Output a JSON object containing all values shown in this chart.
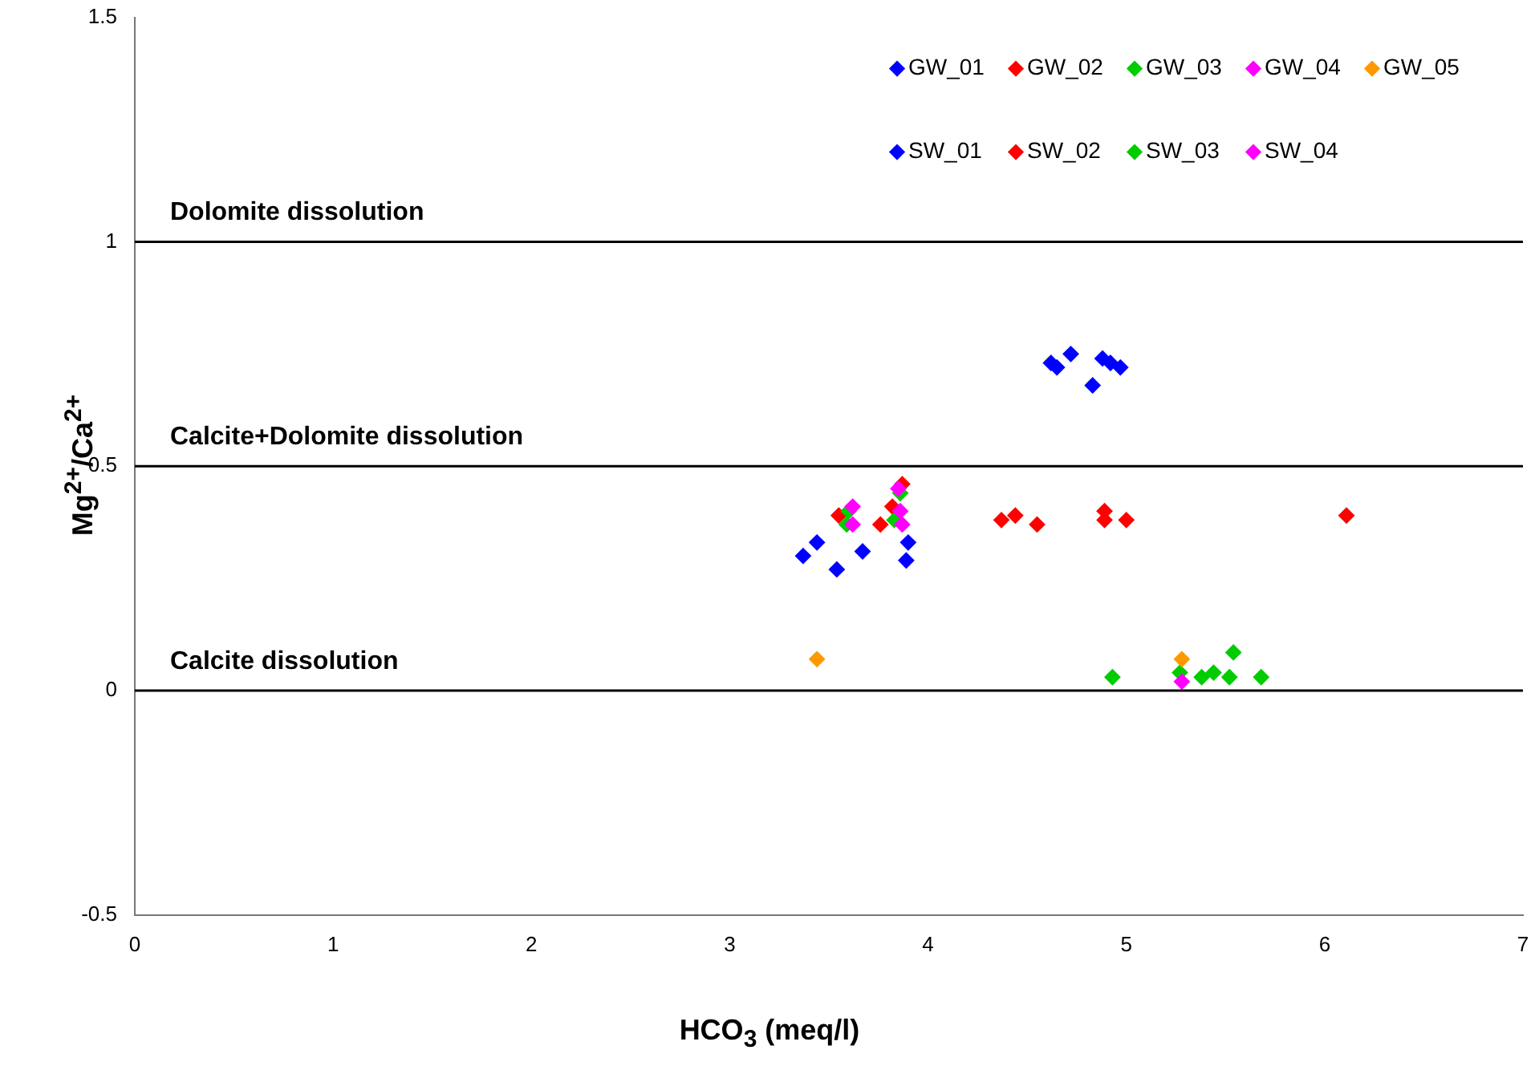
{
  "chart_data": {
    "type": "scatter",
    "xlabel": "HCO$_{3}$ (meq/l)",
    "ylabel": "Mg$^{2+}$/Ca$^{2+}$",
    "xlim": [
      0,
      7
    ],
    "xticks": [
      0,
      1,
      2,
      3,
      4,
      5,
      6,
      7
    ],
    "ylim": [
      -0.5,
      1.5
    ],
    "yticks": [
      -0.5,
      0,
      0.5,
      1,
      1.5
    ],
    "grid": false,
    "legend": "top right",
    "marker": "diamond",
    "ref_lines": [
      {
        "axis": "y",
        "value": 1,
        "label": "Dolomite dissolution",
        "color": "#000000"
      },
      {
        "axis": "y",
        "value": 0.5,
        "label": "Calcite+Dolomite dissolution",
        "color": "#000000"
      },
      {
        "axis": "y",
        "value": 0,
        "label": "Calcite dissolution",
        "color": "#000000"
      }
    ],
    "series": [
      {
        "name": "GW_01",
        "color": "#0000ff",
        "x": [
          3.37,
          3.44,
          3.54,
          3.67,
          3.9,
          3.89
        ],
        "values": [
          0.3,
          0.33,
          0.27,
          0.31,
          0.33,
          0.29
        ]
      },
      {
        "name": "GW_02",
        "color": "#ff0000",
        "x": [
          4.37,
          4.44,
          4.55,
          4.89,
          4.89,
          5.0,
          6.11
        ],
        "values": [
          0.38,
          0.39,
          0.37,
          0.4,
          0.38,
          0.38,
          0.39
        ]
      },
      {
        "name": "GW_03",
        "color": "#00cc00",
        "x": [
          4.93,
          5.27,
          5.38,
          5.44,
          5.52,
          5.54,
          5.68
        ],
        "values": [
          0.03,
          0.04,
          0.03,
          0.04,
          0.03,
          0.085,
          0.03
        ]
      },
      {
        "name": "GW_04",
        "color": "#ff00ff",
        "x": [
          5.28
        ],
        "values": [
          0.02
        ]
      },
      {
        "name": "GW_05",
        "color": "#ff9900",
        "x": [
          3.44,
          5.28
        ],
        "values": [
          0.07,
          0.07
        ]
      },
      {
        "name": "SW_01",
        "color": "#0000ff",
        "x": [
          4.62,
          4.65,
          4.72,
          4.83,
          4.88,
          4.92,
          4.97
        ],
        "values": [
          0.73,
          0.72,
          0.75,
          0.68,
          0.74,
          0.73,
          0.72
        ]
      },
      {
        "name": "SW_02",
        "color": "#ff0000",
        "x": [
          3.55,
          3.76,
          3.82,
          3.87
        ],
        "values": [
          0.39,
          0.37,
          0.41,
          0.46
        ]
      },
      {
        "name": "SW_03",
        "color": "#00cc00",
        "x": [
          3.59,
          3.6,
          3.83,
          3.86
        ],
        "values": [
          0.37,
          0.4,
          0.38,
          0.44
        ]
      },
      {
        "name": "SW_04",
        "color": "#ff00ff",
        "x": [
          3.62,
          3.62,
          3.85,
          3.86,
          3.87
        ],
        "values": [
          0.41,
          0.37,
          0.45,
          0.4,
          0.37
        ]
      }
    ]
  }
}
